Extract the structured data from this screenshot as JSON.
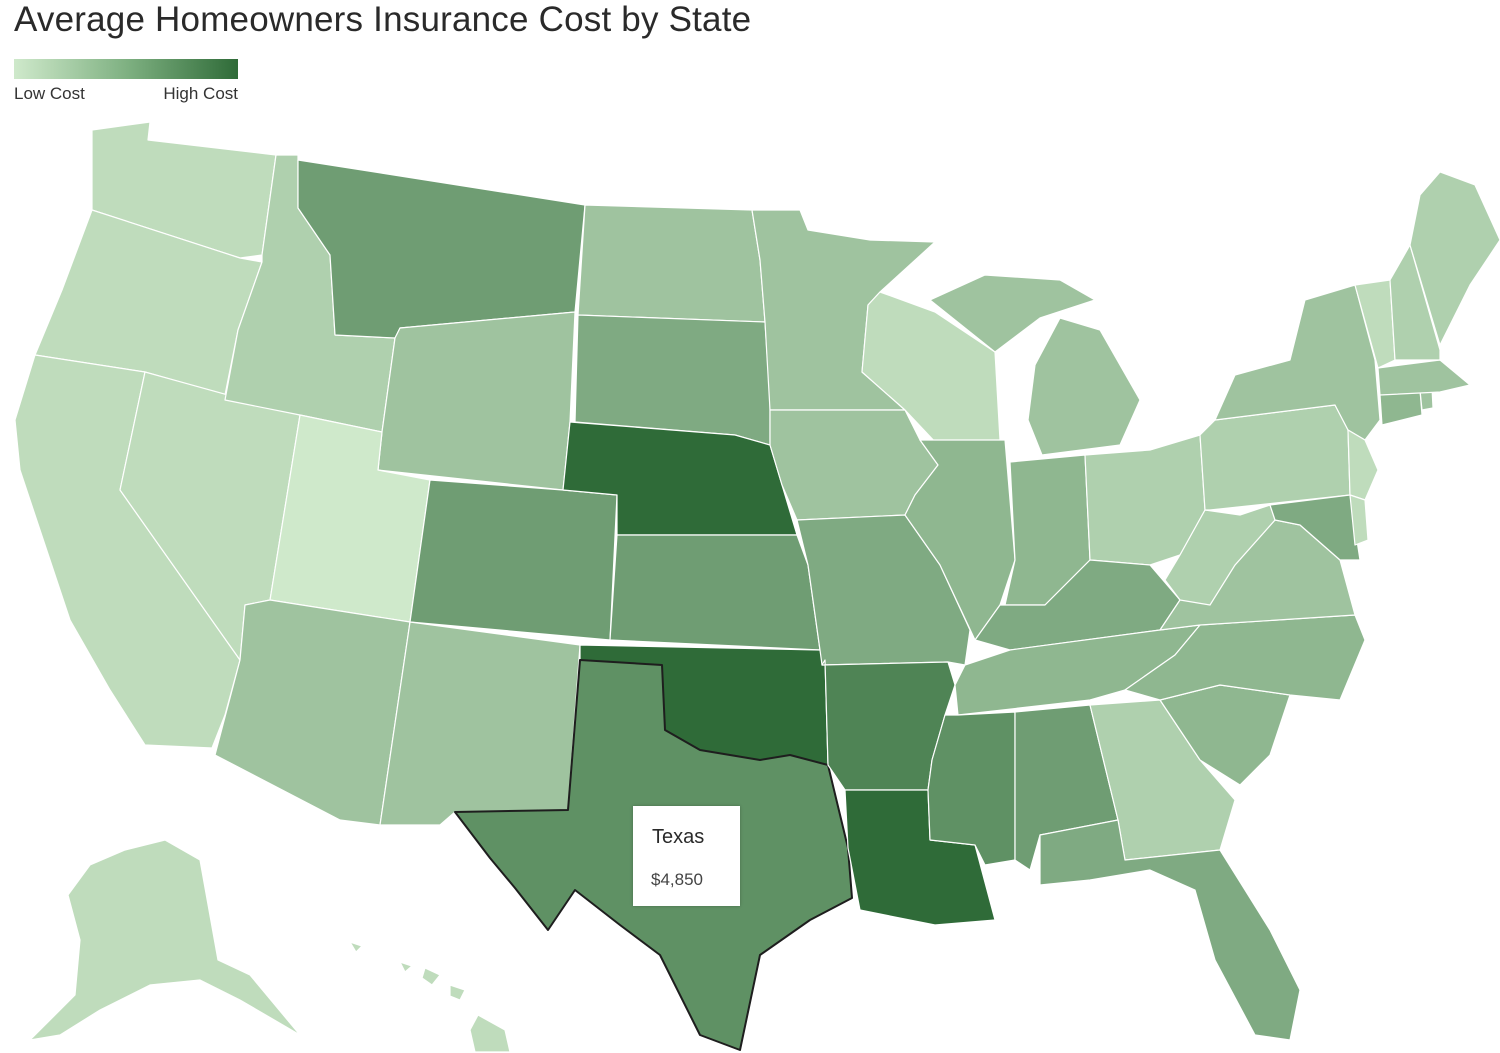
{
  "title": "Average Homeowners Insurance Cost by State",
  "legend": {
    "low_label": "Low Cost",
    "high_label": "High Cost",
    "low_color": "#cfe9cb",
    "high_color": "#2f6b38"
  },
  "tooltip": {
    "state": "Texas",
    "value": "$4,850"
  },
  "states": [
    {
      "name": "Washington",
      "level": 1
    },
    {
      "name": "Oregon",
      "level": 1
    },
    {
      "name": "California",
      "level": 1
    },
    {
      "name": "Nevada",
      "level": 1
    },
    {
      "name": "Idaho",
      "level": 2
    },
    {
      "name": "Montana",
      "level": 6
    },
    {
      "name": "Wyoming",
      "level": 3
    },
    {
      "name": "Utah",
      "level": 0
    },
    {
      "name": "Colorado",
      "level": 6
    },
    {
      "name": "Arizona",
      "level": 3
    },
    {
      "name": "New Mexico",
      "level": 3
    },
    {
      "name": "North Dakota",
      "level": 3
    },
    {
      "name": "South Dakota",
      "level": 5
    },
    {
      "name": "Nebraska",
      "level": 10
    },
    {
      "name": "Kansas",
      "level": 6
    },
    {
      "name": "Oklahoma",
      "level": 10
    },
    {
      "name": "Texas",
      "level": 7
    },
    {
      "name": "Minnesota",
      "level": 3
    },
    {
      "name": "Iowa",
      "level": 3
    },
    {
      "name": "Missouri",
      "level": 5
    },
    {
      "name": "Arkansas",
      "level": 8
    },
    {
      "name": "Louisiana",
      "level": 10
    },
    {
      "name": "Wisconsin",
      "level": 1
    },
    {
      "name": "Illinois",
      "level": 4
    },
    {
      "name": "Michigan",
      "level": 3
    },
    {
      "name": "Indiana",
      "level": 4
    },
    {
      "name": "Ohio",
      "level": 2
    },
    {
      "name": "Kentucky",
      "level": 5
    },
    {
      "name": "Tennessee",
      "level": 4
    },
    {
      "name": "Mississippi",
      "level": 7
    },
    {
      "name": "Alabama",
      "level": 6
    },
    {
      "name": "Georgia",
      "level": 2
    },
    {
      "name": "Florida",
      "level": 5
    },
    {
      "name": "South Carolina",
      "level": 4
    },
    {
      "name": "North Carolina",
      "level": 4
    },
    {
      "name": "Virginia",
      "level": 3
    },
    {
      "name": "West Virginia",
      "level": 2
    },
    {
      "name": "Pennsylvania",
      "level": 2
    },
    {
      "name": "New York",
      "level": 3
    },
    {
      "name": "Maryland",
      "level": 5
    },
    {
      "name": "New Jersey",
      "level": 1
    },
    {
      "name": "Delaware",
      "level": 1
    },
    {
      "name": "Connecticut",
      "level": 4
    },
    {
      "name": "Massachusetts",
      "level": 3
    },
    {
      "name": "Vermont",
      "level": 1
    },
    {
      "name": "New Hampshire",
      "level": 2
    },
    {
      "name": "Maine",
      "level": 2
    },
    {
      "name": "Rhode Island",
      "level": 3
    },
    {
      "name": "Alaska",
      "level": 1
    },
    {
      "name": "Hawaii",
      "level": 1
    }
  ]
}
